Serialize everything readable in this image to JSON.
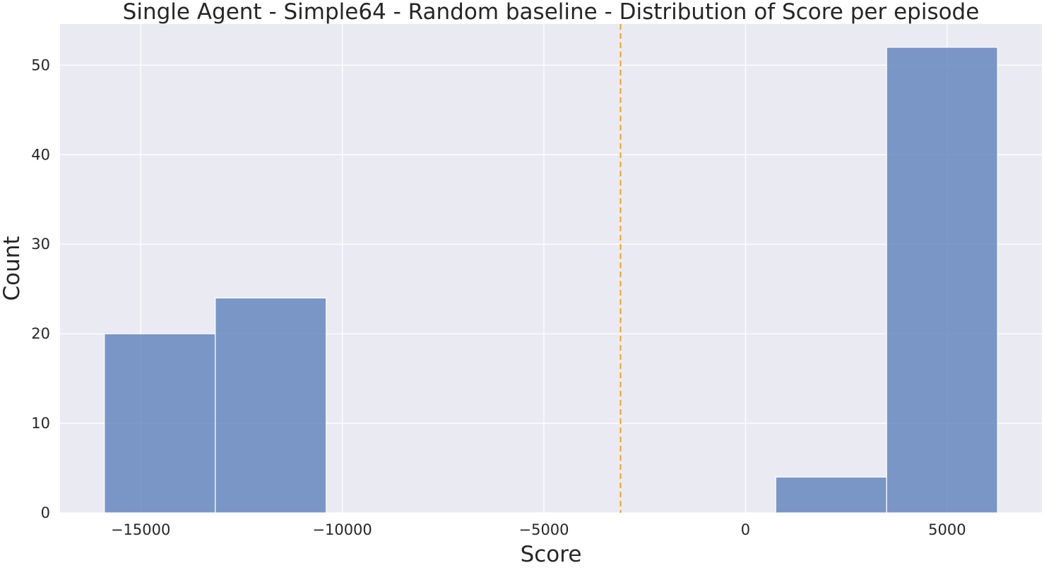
{
  "chart_data": {
    "type": "bar",
    "subtype": "histogram",
    "title": "Single Agent - Simple64 - Random baseline - Distribution of Score per episode",
    "xlabel": "Score",
    "ylabel": "Count",
    "xlim": [
      -17000,
      7350
    ],
    "ylim": [
      0,
      54.6
    ],
    "x_ticks": [
      -15000,
      -10000,
      -5000,
      0,
      5000
    ],
    "x_tick_labels": [
      "−15000",
      "−10000",
      "−5000",
      "0",
      "5000"
    ],
    "y_ticks": [
      0,
      10,
      20,
      30,
      40,
      50
    ],
    "y_tick_labels": [
      "0",
      "10",
      "20",
      "30",
      "40",
      "50"
    ],
    "bins": [
      {
        "x0": -15900,
        "x1": -13150,
        "count": 20
      },
      {
        "x0": -13150,
        "x1": -10400,
        "count": 24
      },
      {
        "x0": -10400,
        "x1": -7650,
        "count": 0
      },
      {
        "x0": -7650,
        "x1": -4900,
        "count": 0
      },
      {
        "x0": -4900,
        "x1": -2150,
        "count": 0
      },
      {
        "x0": -2150,
        "x1": 600,
        "count": 0
      },
      {
        "x0": 750,
        "x1": 3500,
        "count": 4
      },
      {
        "x0": 3500,
        "x1": 6250,
        "count": 52
      }
    ],
    "reference_line": {
      "x": -3100,
      "style": "dashed",
      "color": "#f5a31a"
    },
    "bar_color": "#5a7dba",
    "background_color": "#eaeaf2",
    "grid": true
  }
}
